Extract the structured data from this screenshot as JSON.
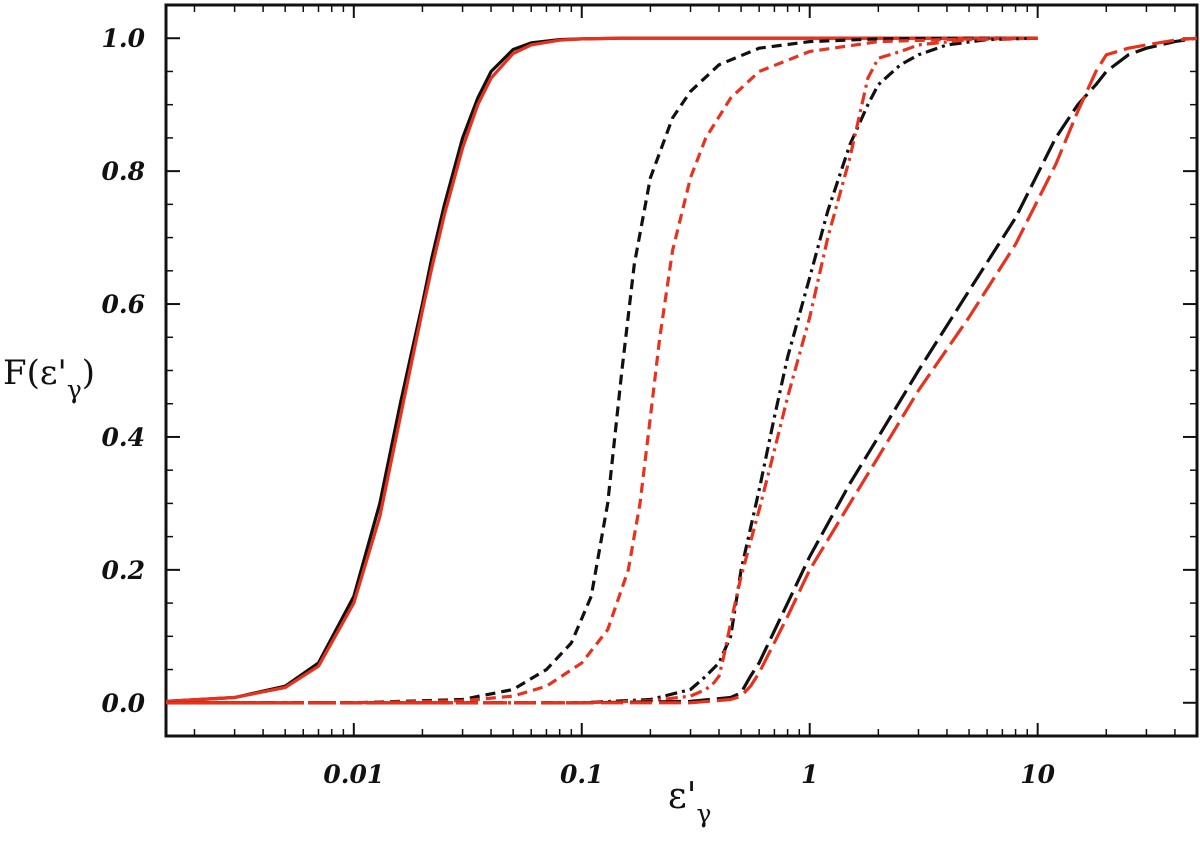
{
  "chart_data": {
    "type": "line",
    "title": "",
    "xlabel": {
      "main": "ε'",
      "sub": "γ"
    },
    "ylabel": {
      "main": "F(ε'",
      "sub": "γ",
      "tail": ")"
    },
    "x_scale": "log",
    "xlim": [
      0.0015,
      50
    ],
    "ylim": [
      -0.05,
      1.05
    ],
    "x_ticks": [
      {
        "value": 0.01,
        "label": "0.01"
      },
      {
        "value": 0.1,
        "label": "0.1"
      },
      {
        "value": 1,
        "label": "1"
      },
      {
        "value": 10,
        "label": "10"
      }
    ],
    "y_ticks": [
      {
        "value": 0.0,
        "label": "0.0"
      },
      {
        "value": 0.2,
        "label": "0.2"
      },
      {
        "value": 0.4,
        "label": "0.4"
      },
      {
        "value": 0.6,
        "label": "0.6"
      },
      {
        "value": 0.8,
        "label": "0.8"
      },
      {
        "value": 1.0,
        "label": "1.0"
      }
    ],
    "grid": false,
    "legend": "none",
    "series": [
      {
        "color": "#111111",
        "style": "solid",
        "x": [
          0.0015,
          0.003,
          0.005,
          0.007,
          0.01,
          0.013,
          0.016,
          0.018,
          0.02,
          0.022,
          0.025,
          0.03,
          0.035,
          0.04,
          0.05,
          0.06,
          0.08,
          0.1,
          0.15,
          0.2,
          0.5,
          1,
          2,
          5,
          10
        ],
        "y": [
          0.002,
          0.008,
          0.025,
          0.06,
          0.16,
          0.3,
          0.45,
          0.53,
          0.6,
          0.67,
          0.75,
          0.85,
          0.91,
          0.95,
          0.983,
          0.993,
          0.998,
          0.999,
          1.0,
          1.0,
          1.0,
          1.0,
          1.0,
          1.0,
          1.0
        ]
      },
      {
        "color": "#e8321e",
        "style": "solid",
        "x": [
          0.0015,
          0.003,
          0.005,
          0.007,
          0.01,
          0.013,
          0.016,
          0.018,
          0.02,
          0.022,
          0.025,
          0.03,
          0.035,
          0.04,
          0.05,
          0.06,
          0.08,
          0.1,
          0.15,
          0.2,
          0.5,
          1,
          2,
          5,
          10
        ],
        "y": [
          0.002,
          0.008,
          0.023,
          0.055,
          0.15,
          0.28,
          0.43,
          0.515,
          0.59,
          0.655,
          0.735,
          0.835,
          0.9,
          0.94,
          0.977,
          0.99,
          0.997,
          0.999,
          1.0,
          1.0,
          1.0,
          1.0,
          1.0,
          1.0,
          1.0
        ]
      },
      {
        "color": "#111111",
        "style": "dash",
        "x": [
          0.0015,
          0.01,
          0.03,
          0.05,
          0.07,
          0.09,
          0.11,
          0.13,
          0.15,
          0.17,
          0.2,
          0.25,
          0.3,
          0.4,
          0.6,
          1,
          2,
          5,
          10
        ],
        "y": [
          0.0,
          0.0,
          0.005,
          0.02,
          0.05,
          0.09,
          0.16,
          0.3,
          0.5,
          0.66,
          0.79,
          0.88,
          0.92,
          0.96,
          0.985,
          0.995,
          0.999,
          1.0,
          1.0
        ]
      },
      {
        "color": "#e8321e",
        "style": "dash",
        "x": [
          0.0015,
          0.01,
          0.03,
          0.05,
          0.07,
          0.1,
          0.13,
          0.16,
          0.18,
          0.2,
          0.22,
          0.25,
          0.3,
          0.35,
          0.45,
          0.6,
          1,
          2,
          5,
          10
        ],
        "y": [
          0.0,
          0.0,
          0.003,
          0.01,
          0.025,
          0.06,
          0.11,
          0.2,
          0.3,
          0.43,
          0.55,
          0.68,
          0.79,
          0.85,
          0.91,
          0.95,
          0.98,
          0.995,
          0.999,
          1.0
        ]
      },
      {
        "color": "#111111",
        "style": "dashdot",
        "x": [
          0.0015,
          0.1,
          0.2,
          0.3,
          0.35,
          0.4,
          0.45,
          0.5,
          0.6,
          0.7,
          0.8,
          1.0,
          1.2,
          1.5,
          1.8,
          2.0,
          2.5,
          3,
          4,
          6,
          10
        ],
        "y": [
          0.0,
          0.0,
          0.005,
          0.02,
          0.04,
          0.06,
          0.1,
          0.2,
          0.32,
          0.43,
          0.52,
          0.64,
          0.74,
          0.84,
          0.9,
          0.93,
          0.96,
          0.975,
          0.99,
          0.998,
          1.0
        ]
      },
      {
        "color": "#e8321e",
        "style": "dashdot",
        "x": [
          0.0015,
          0.1,
          0.2,
          0.3,
          0.35,
          0.38,
          0.4,
          0.42,
          0.45,
          0.5,
          0.6,
          0.7,
          0.8,
          1.0,
          1.2,
          1.5,
          1.8,
          2.0,
          2.5,
          3,
          5,
          10
        ],
        "y": [
          0.0,
          0.0,
          0.003,
          0.01,
          0.02,
          0.03,
          0.04,
          0.07,
          0.12,
          0.19,
          0.29,
          0.38,
          0.46,
          0.58,
          0.7,
          0.82,
          0.94,
          0.97,
          0.98,
          0.99,
          0.998,
          1.0
        ]
      },
      {
        "color": "#111111",
        "style": "longdash",
        "x": [
          0.0015,
          0.1,
          0.3,
          0.45,
          0.5,
          0.55,
          0.6,
          0.8,
          1,
          1.5,
          2,
          3,
          5,
          8,
          12,
          15,
          18,
          20,
          25,
          30,
          40,
          50
        ],
        "y": [
          0.0,
          0.0,
          0.002,
          0.008,
          0.015,
          0.04,
          0.06,
          0.15,
          0.22,
          0.33,
          0.4,
          0.5,
          0.62,
          0.73,
          0.85,
          0.9,
          0.93,
          0.95,
          0.975,
          0.985,
          0.995,
          1.0
        ]
      },
      {
        "color": "#e8321e",
        "style": "longdash",
        "x": [
          0.0015,
          0.1,
          0.3,
          0.45,
          0.5,
          0.55,
          0.6,
          0.8,
          1,
          1.5,
          2,
          3,
          5,
          8,
          12,
          15,
          18,
          20,
          25,
          30,
          40,
          50
        ],
        "y": [
          0.0,
          0.0,
          0.0,
          0.005,
          0.01,
          0.025,
          0.045,
          0.13,
          0.2,
          0.3,
          0.37,
          0.47,
          0.58,
          0.69,
          0.81,
          0.89,
          0.95,
          0.975,
          0.985,
          0.99,
          0.997,
          1.0
        ]
      }
    ]
  }
}
